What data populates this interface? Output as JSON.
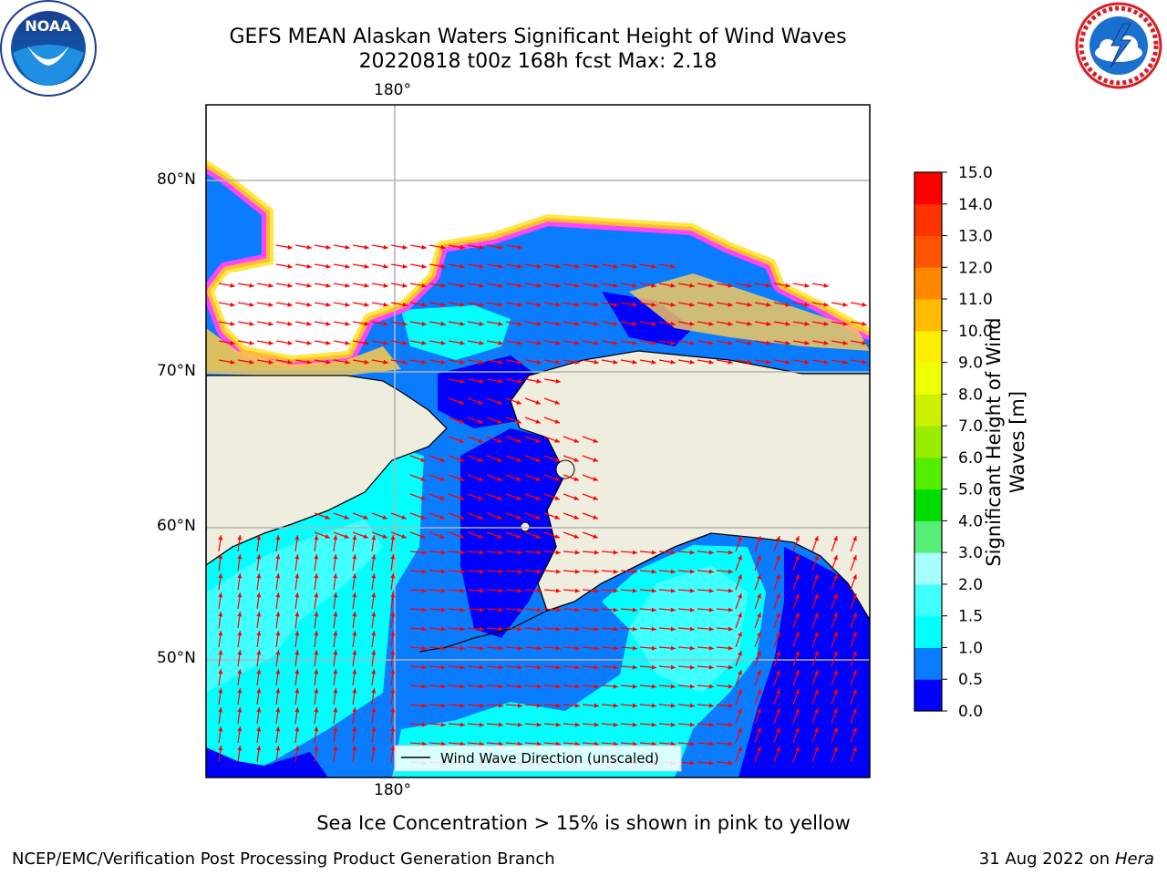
{
  "header": {
    "title_line1": "GEFS MEAN Alaskan Waters Significant Height of Wind Waves",
    "title_line2": "20220818 t00z 168h fcst   Max: 2.18"
  },
  "logos": {
    "noaa_text": "NOAA",
    "noaa_ring": "NATIONAL OCEANIC AND ATMOSPHERIC ADMINISTRATION · U.S. DEPARTMENT OF COMMERCE",
    "nws_ring": "NATIONAL WEATHER SERVICE"
  },
  "map": {
    "lon_label_top": "180°",
    "lon_label_bottom": "180°",
    "lat_labels": [
      "80°N",
      "70°N",
      "60°N",
      "50°N"
    ],
    "legend_label": "Wind Wave Direction (unscaled)",
    "colors": {
      "land": "#efedde",
      "ice_mask": "#ffffff",
      "arrow": "#ff0000",
      "grid": "#b4b4b4"
    }
  },
  "colorbar": {
    "label": "Significant Height of Wind Waves [m]",
    "ticks": [
      "0.0",
      "0.5",
      "1.0",
      "1.5",
      "2.0",
      "3.0",
      "4.0",
      "5.0",
      "6.0",
      "7.0",
      "8.0",
      "9.0",
      "10.0",
      "11.0",
      "12.0",
      "13.0",
      "14.0",
      "15.0"
    ],
    "colors": [
      "#0000ff",
      "#0a7cff",
      "#00ffff",
      "#40ffff",
      "#a8ffff",
      "#55ee77",
      "#00dd00",
      "#55ee00",
      "#99ee00",
      "#cdf000",
      "#eeff00",
      "#ffee00",
      "#ffbb00",
      "#ff8800",
      "#ff5500",
      "#ff3300",
      "#ff0000"
    ]
  },
  "footer": {
    "note": "Sea Ice Concentration > 15% is shown in pink to yellow",
    "org": "NCEP/EMC/Verification Post Processing Product Generation Branch",
    "date": "31 Aug 2022 on",
    "machine": "Hera"
  },
  "chart_data": {
    "type": "heatmap",
    "title": "GEFS MEAN Alaskan Waters Significant Height of Wind Waves",
    "subtitle": "20220818 t00z 168h fcst   Max: 2.18",
    "variable": "Significant Height of Wind Waves [m]",
    "max_value": 2.18,
    "color_scale_bounds": [
      0.0,
      0.5,
      1.0,
      1.5,
      2.0,
      3.0,
      4.0,
      5.0,
      6.0,
      7.0,
      8.0,
      9.0,
      10.0,
      11.0,
      12.0,
      13.0,
      14.0,
      15.0
    ],
    "longitude_gridline": "180°",
    "latitude_gridlines": [
      "80°N",
      "70°N",
      "60°N",
      "50°N"
    ],
    "grid": true,
    "vectors": "Wind Wave Direction (unscaled)"
  }
}
